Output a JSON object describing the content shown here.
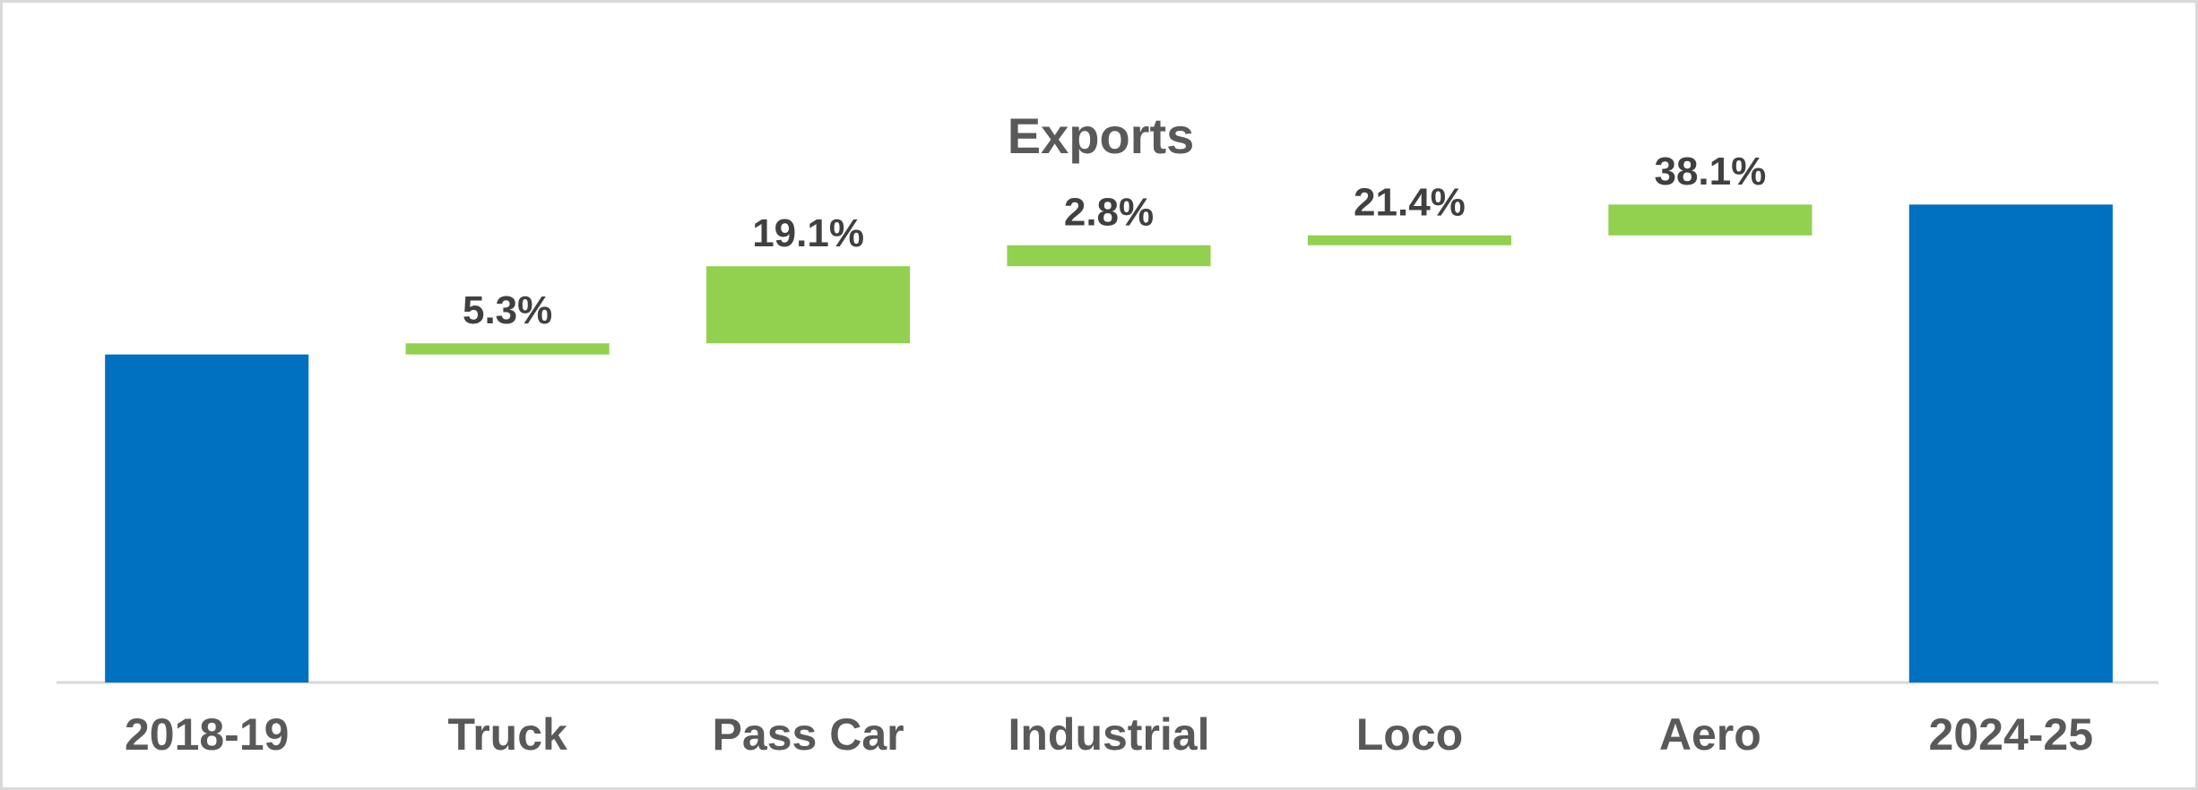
{
  "chart_data": {
    "type": "waterfall",
    "title": "Exports",
    "categories": [
      "2018-19",
      "Truck",
      "Pass Car",
      "Industrial",
      "Loco",
      "Aero",
      "2024-25"
    ],
    "measure": [
      "absolute",
      "relative",
      "relative",
      "relative",
      "relative",
      "relative",
      "total"
    ],
    "values": [
      100,
      3.4,
      23.5,
      6.4,
      3.0,
      9.4,
      145.7
    ],
    "annotations": [
      null,
      "5.3%",
      "19.1%",
      "2.8%",
      "21.4%",
      "38.1%",
      null
    ],
    "total_color": "#0070c0",
    "increase_color": "#92d050",
    "ylim": [
      0,
      160
    ]
  }
}
